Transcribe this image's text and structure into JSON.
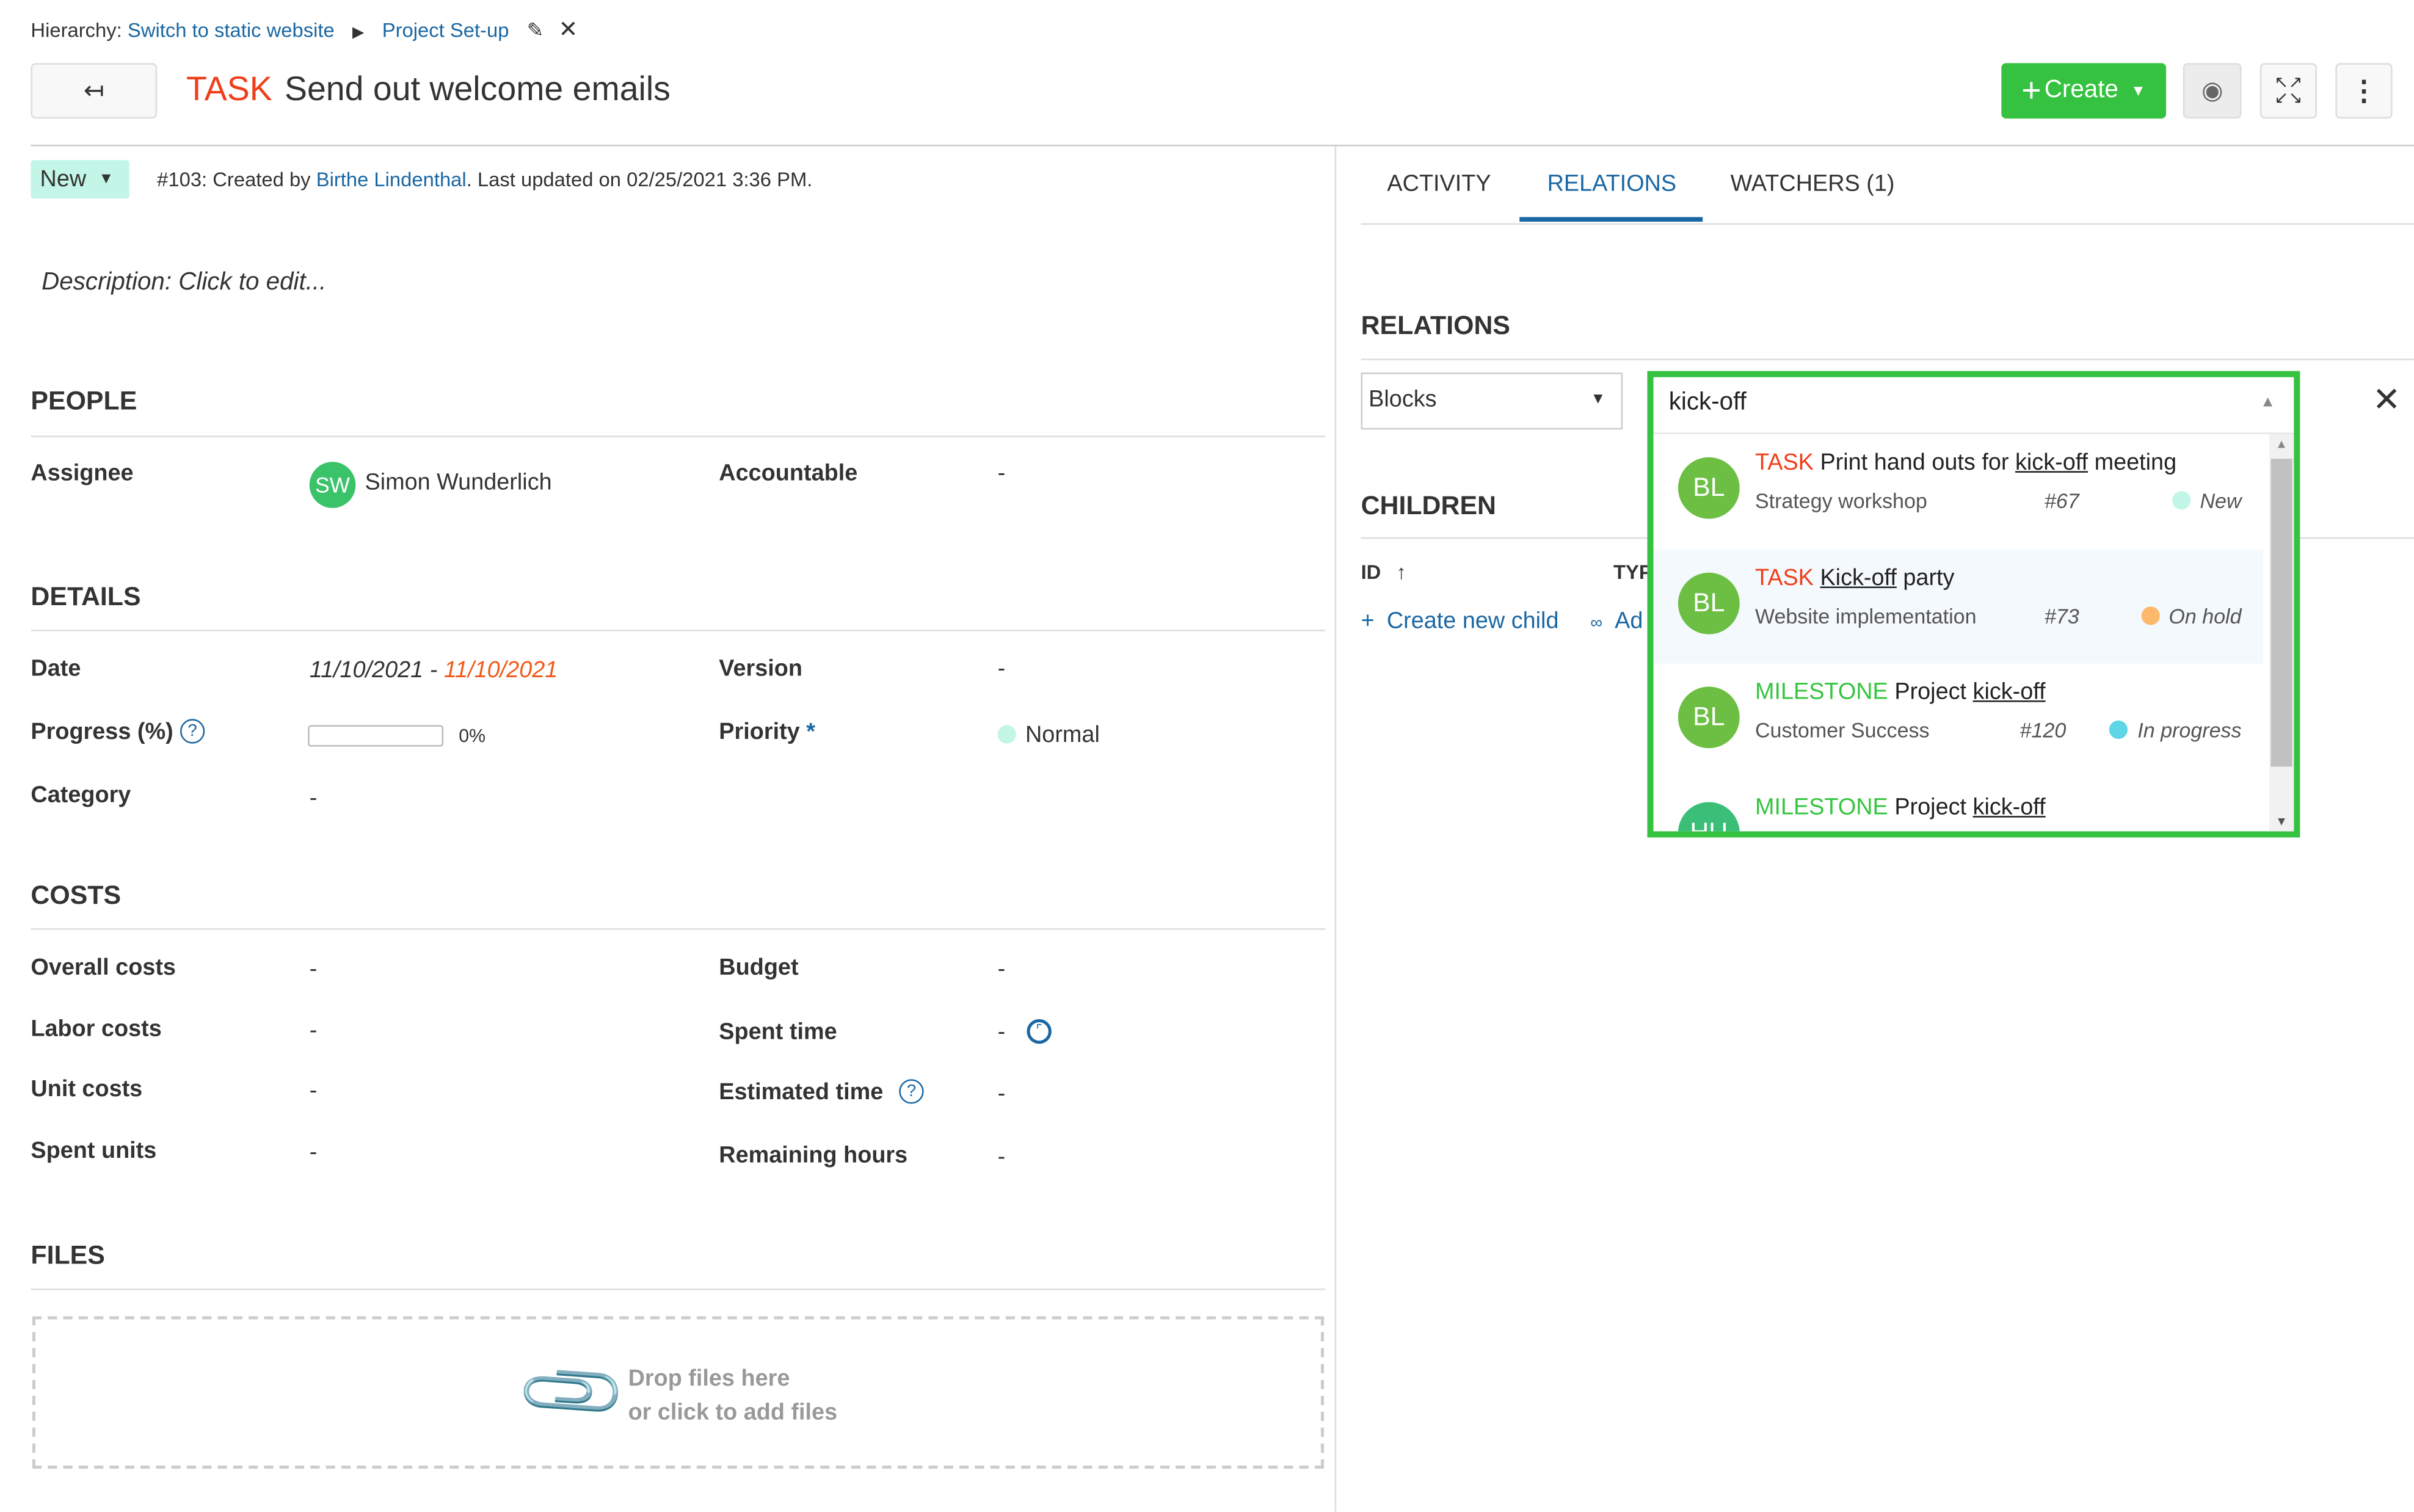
{
  "breadcrumb": {
    "label": "Hierarchy:",
    "items": [
      "Switch to static website",
      "Project Set-up"
    ]
  },
  "header": {
    "type": "TASK",
    "title": "Send out welcome emails",
    "create_label": "Create"
  },
  "status": {
    "label": "New",
    "meta_prefix": "#103: Created by ",
    "author": "Birthe Lindenthal",
    "meta_suffix": ". Last updated on 02/25/2021 3:36 PM."
  },
  "description": "Description: Click to edit...",
  "people": {
    "heading": "PEOPLE",
    "assignee_label": "Assignee",
    "assignee_initials": "SW",
    "assignee": "Simon Wunderlich",
    "accountable_label": "Accountable",
    "accountable": "-"
  },
  "details": {
    "heading": "DETAILS",
    "date_label": "Date",
    "date_start": "11/10/2021",
    "date_sep": " - ",
    "date_end": "11/10/2021",
    "version_label": "Version",
    "version": "-",
    "progress_label": "Progress (%)",
    "progress_value": "0%",
    "progress": 0,
    "priority_label": "Priority",
    "priority_required": "*",
    "priority": "Normal",
    "category_label": "Category",
    "category": "-"
  },
  "costs": {
    "heading": "COSTS",
    "overall_label": "Overall costs",
    "overall": "-",
    "budget_label": "Budget",
    "budget": "-",
    "labor_label": "Labor costs",
    "labor": "-",
    "spent_time_label": "Spent time",
    "spent_time": "-",
    "unit_label": "Unit costs",
    "unit": "-",
    "estimated_label": "Estimated time",
    "estimated": "-",
    "spent_units_label": "Spent units",
    "spent_units": "-",
    "remaining_label": "Remaining hours",
    "remaining": "-"
  },
  "files": {
    "heading": "FILES",
    "drop_line1": "Drop files here",
    "drop_line2": "or click to add files"
  },
  "tabs": [
    "ACTIVITY",
    "RELATIONS",
    "WATCHERS (1)"
  ],
  "relations": {
    "heading": "RELATIONS",
    "relation_type": "Blocks",
    "search_value": "kick-off"
  },
  "children": {
    "heading": "CHILDREN",
    "col_id": "ID",
    "col_type": "TYP",
    "create_child": "Create new child",
    "add_existing": "Ad"
  },
  "results": [
    {
      "initials": "BL",
      "type": "TASK",
      "pre": "Print hand outs for ",
      "match": "kick-off",
      "post": " meeting",
      "project": "Strategy workshop",
      "id": "#67",
      "status": "New",
      "status_color": "#c3f6e6"
    },
    {
      "initials": "BL",
      "type": "TASK",
      "pre": "",
      "match": "Kick-off",
      "post": " party",
      "project": "Website implementation",
      "id": "#73",
      "status": "On hold",
      "status_color": "#fcb96b"
    },
    {
      "initials": "BL",
      "type": "MILESTONE",
      "pre": "Project ",
      "match": "kick-off",
      "post": "",
      "project": "Customer Success",
      "id": "#120",
      "status": "In progress",
      "status_color": "#5ed6e6"
    },
    {
      "initials": "HU",
      "type": "MILESTONE",
      "pre": "Project ",
      "match": "kick-off",
      "post": ""
    }
  ],
  "colors": {
    "task": "#f03e1a",
    "milestone": "#35c53f",
    "link": "#1a67a3",
    "create": "#35c240",
    "highlight": "#35c240"
  }
}
